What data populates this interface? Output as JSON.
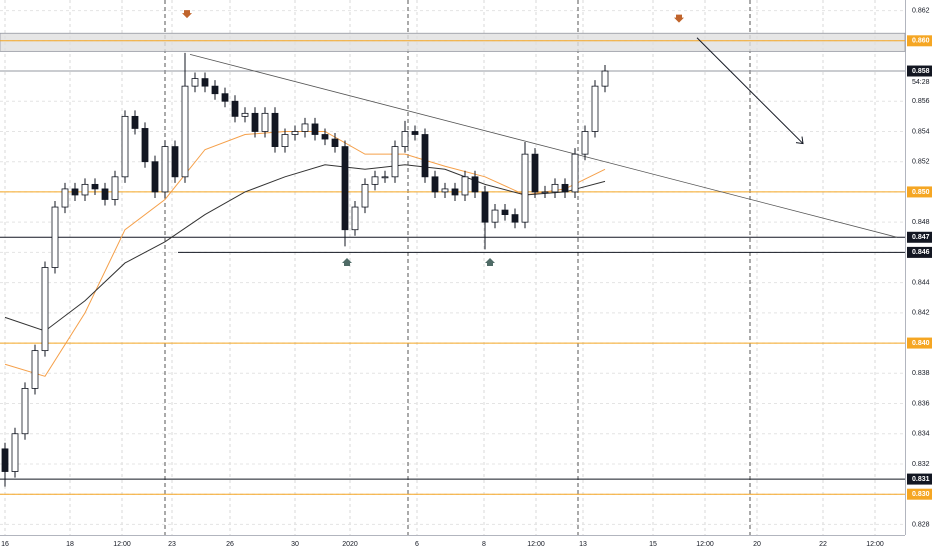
{
  "chart_data": {
    "type": "candlestick",
    "xlim": [
      -0.5,
      90
    ],
    "ylim": [
      0.8273,
      0.8627
    ],
    "xticks": [
      {
        "value": 0,
        "label": "16"
      },
      {
        "value": 6.5,
        "label": "18"
      },
      {
        "value": 11.7,
        "label": "12:00"
      },
      {
        "value": 16.7,
        "label": "23"
      },
      {
        "value": 22.5,
        "label": "26"
      },
      {
        "value": 29,
        "label": "30"
      },
      {
        "value": 34.5,
        "label": "2020"
      },
      {
        "value": 41.2,
        "label": "6"
      },
      {
        "value": 47.9,
        "label": "8"
      },
      {
        "value": 53.1,
        "label": "12:00"
      },
      {
        "value": 57.8,
        "label": "13"
      },
      {
        "value": 64.8,
        "label": "15"
      },
      {
        "value": 70,
        "label": "12:00"
      },
      {
        "value": 75.2,
        "label": "20"
      },
      {
        "value": 81.8,
        "label": "22"
      },
      {
        "value": 87,
        "label": "12:00"
      }
    ],
    "yticks": [
      0.862,
      {
        "value": 0.86,
        "label": "0.860"
      },
      0.858,
      0.856,
      0.854,
      0.852,
      {
        "value": 0.85,
        "label": "0.850"
      },
      0.848,
      0.846,
      0.844,
      0.842,
      {
        "value": 0.84,
        "label": "0.840"
      },
      0.838,
      0.836,
      0.834,
      0.832,
      {
        "value": 0.83,
        "label": "0.830"
      },
      0.828
    ],
    "grid": true,
    "up_color": "#ffffff",
    "down_color": "#131722",
    "open": [
      0.833,
      0.8315,
      0.834,
      0.837,
      0.8395,
      0.845,
      0.849,
      0.8502,
      0.8498,
      0.8505,
      0.8502,
      0.8495,
      0.851,
      0.855,
      0.8542,
      0.852,
      0.85,
      0.853,
      0.851,
      0.857,
      0.8575,
      0.857,
      0.8565,
      0.856,
      0.855,
      0.8552,
      0.854,
      0.8552,
      0.853,
      0.8538,
      0.854,
      0.8545,
      0.8538,
      0.8535,
      0.853,
      0.8475,
      0.849,
      0.8505,
      0.851,
      0.851,
      0.853,
      0.854,
      0.8538,
      0.851,
      0.85,
      0.8502,
      0.8498,
      0.851,
      0.85,
      0.848,
      0.8488,
      0.8485,
      0.848,
      0.8525,
      0.85,
      0.85,
      0.8505,
      0.85,
      0.8525,
      0.854,
      0.857
    ],
    "high": [
      0.8334,
      0.8344,
      0.8374,
      0.8399,
      0.8454,
      0.8494,
      0.8506,
      0.8506,
      0.8509,
      0.8509,
      0.8506,
      0.8514,
      0.8554,
      0.8554,
      0.8546,
      0.8524,
      0.8534,
      0.8534,
      0.8592,
      0.8579,
      0.8579,
      0.8574,
      0.8569,
      0.8564,
      0.8556,
      0.8556,
      0.8556,
      0.8556,
      0.8542,
      0.8544,
      0.8549,
      0.8549,
      0.8542,
      0.8539,
      0.8534,
      0.8494,
      0.8509,
      0.8514,
      0.8514,
      0.8534,
      0.8547,
      0.8544,
      0.8542,
      0.8514,
      0.8506,
      0.8506,
      0.8514,
      0.8514,
      0.8504,
      0.8492,
      0.8492,
      0.8489,
      0.8533,
      0.8529,
      0.8504,
      0.8509,
      0.8509,
      0.8529,
      0.8544,
      0.8574,
      0.8584
    ],
    "low": [
      0.8305,
      0.8311,
      0.8336,
      0.8366,
      0.8391,
      0.8446,
      0.8486,
      0.8494,
      0.8494,
      0.8498,
      0.8491,
      0.8491,
      0.8506,
      0.8538,
      0.8516,
      0.8496,
      0.8496,
      0.8506,
      0.8506,
      0.8566,
      0.8566,
      0.8561,
      0.8556,
      0.8546,
      0.8546,
      0.8536,
      0.8536,
      0.8526,
      0.8526,
      0.8534,
      0.8536,
      0.8534,
      0.8531,
      0.8526,
      0.8464,
      0.8471,
      0.8486,
      0.8501,
      0.8506,
      0.8506,
      0.8526,
      0.8534,
      0.8506,
      0.8496,
      0.8496,
      0.8494,
      0.8494,
      0.8496,
      0.8462,
      0.8476,
      0.8481,
      0.8476,
      0.8476,
      0.8496,
      0.8496,
      0.8496,
      0.8496,
      0.8496,
      0.8521,
      0.8536,
      0.8566
    ],
    "close": [
      0.8315,
      0.834,
      0.837,
      0.8395,
      0.845,
      0.849,
      0.8502,
      0.8498,
      0.8505,
      0.8502,
      0.8495,
      0.851,
      0.855,
      0.8542,
      0.852,
      0.85,
      0.853,
      0.851,
      0.857,
      0.8575,
      0.857,
      0.8565,
      0.856,
      0.855,
      0.8552,
      0.854,
      0.8552,
      0.853,
      0.8538,
      0.854,
      0.8545,
      0.8538,
      0.8535,
      0.853,
      0.8475,
      0.849,
      0.8505,
      0.851,
      0.851,
      0.853,
      0.854,
      0.8538,
      0.851,
      0.85,
      0.8502,
      0.8498,
      0.851,
      0.85,
      0.848,
      0.8488,
      0.8485,
      0.848,
      0.8525,
      0.85,
      0.85,
      0.8505,
      0.85,
      0.8525,
      0.854,
      0.857,
      0.858
    ],
    "series": [
      {
        "color": "#f5a04a",
        "x": [
          0,
          4,
          8,
          12,
          16,
          20,
          24,
          28,
          32,
          36,
          40,
          44,
          48,
          52,
          56,
          60
        ],
        "values": [
          0.8386,
          0.8378,
          0.842,
          0.8475,
          0.8495,
          0.8528,
          0.8538,
          0.854,
          0.854,
          0.8525,
          0.8525,
          0.8517,
          0.851,
          0.8498,
          0.8502,
          0.8515
        ]
      },
      {
        "color": "#333333",
        "x": [
          0,
          4,
          8,
          12,
          16,
          20,
          24,
          28,
          32,
          36,
          40,
          44,
          48,
          52,
          56,
          60
        ],
        "values": [
          0.8417,
          0.8408,
          0.8428,
          0.8453,
          0.8467,
          0.8485,
          0.85,
          0.851,
          0.8518,
          0.8515,
          0.8518,
          0.8515,
          0.8505,
          0.8498,
          0.85,
          0.8507
        ]
      }
    ],
    "levels": [
      {
        "value": 0.86,
        "label": "0.860",
        "color": "#f5a623"
      },
      {
        "value": 0.858,
        "label": "0.858",
        "color": "#131722",
        "line": "#9598a1",
        "sub": "54:28"
      },
      {
        "value": 0.85,
        "label": "0.850",
        "color": "#f5a623"
      },
      {
        "value": 0.847,
        "label": "0.847",
        "color": "#131722"
      },
      {
        "value": 0.846,
        "label": "0.846",
        "color": "#131722",
        "from": 17.3
      },
      {
        "value": 0.84,
        "label": "0.840",
        "color": "#f5a623"
      },
      {
        "value": 0.831,
        "label": "0.831",
        "color": "#131722"
      },
      {
        "value": 0.83,
        "label": "0.830",
        "color": "#f5a623"
      }
    ],
    "zone": [
      0.8593,
      0.8605
    ],
    "separators": [
      16,
      40.3,
      57.3,
      74.5
    ],
    "trendline": [
      [
        18.5,
        0.8591
      ],
      [
        89.2,
        0.847
      ]
    ],
    "arrow": [
      [
        69.2,
        0.8602
      ],
      [
        79.8,
        0.8532
      ]
    ],
    "down_markers": [
      [
        18.2,
        0.8617
      ],
      [
        67.4,
        0.8614
      ]
    ],
    "up_markers": [
      [
        34.2,
        0.8453
      ],
      [
        48.5,
        0.8453
      ]
    ]
  }
}
